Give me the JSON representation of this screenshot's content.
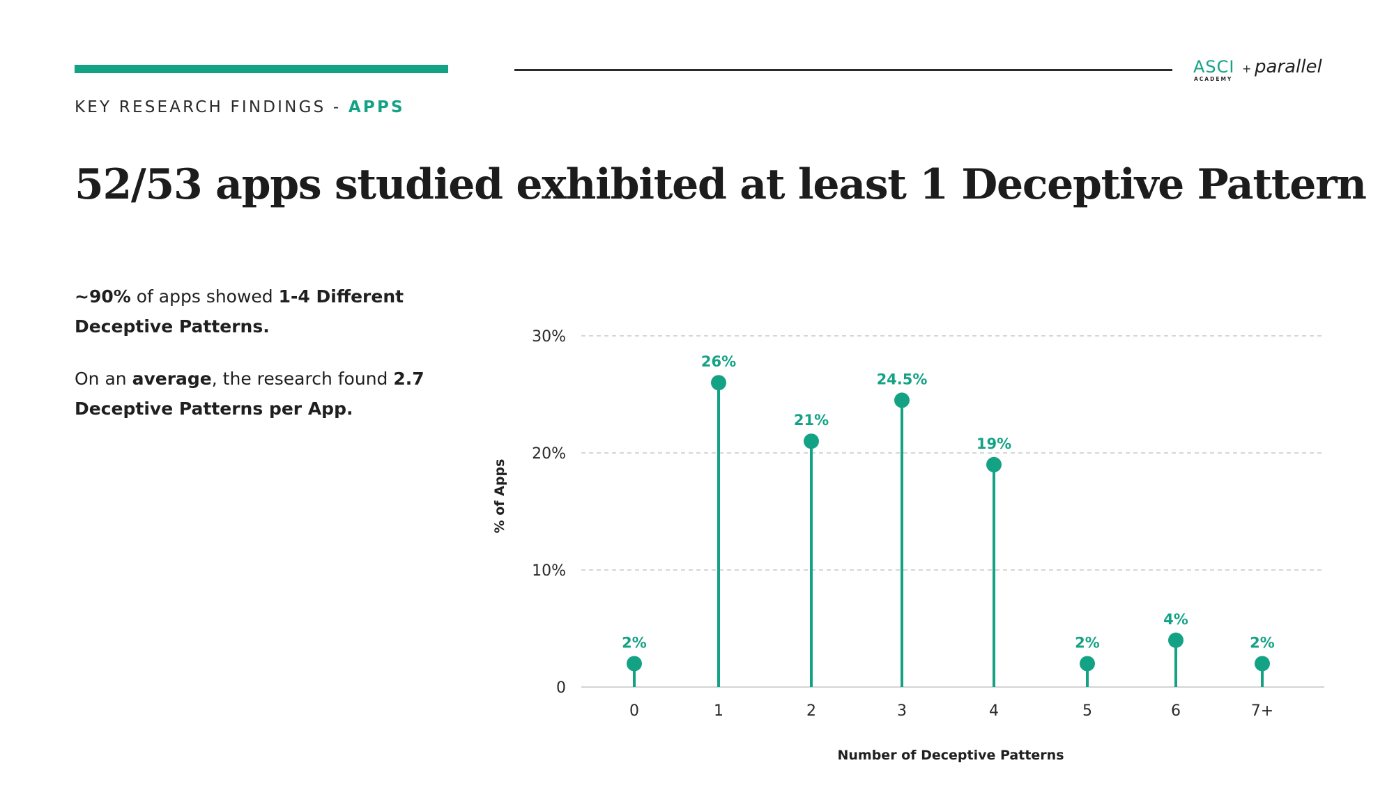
{
  "header": {
    "section_label_prefix": "KEY RESEARCH FINDINGS - ",
    "section_label_highlight": "APPS",
    "logo_asci_text": "ASCI",
    "logo_asci_sub": "ACADEMY",
    "logo_plus": "+",
    "logo_parallel": "parallel"
  },
  "headline": "52/53 apps studied exhibited at least 1 Deceptive Pattern",
  "insights": {
    "p1_bold1": "~90%",
    "p1_text1": " of apps showed ",
    "p1_bold2": "1-4 Different Deceptive Patterns.",
    "p2_text1": "On an ",
    "p2_bold1": "average",
    "p2_text2": ", the research found ",
    "p2_bold2": "2.7 Deceptive Patterns per App."
  },
  "colors": {
    "accent": "#14a285",
    "text": "#1f1f1f",
    "grid": "#c8c8c8",
    "axis": "#d4d4d4"
  },
  "chart_data": {
    "type": "lollipop",
    "categories": [
      "0",
      "1",
      "2",
      "3",
      "4",
      "5",
      "6",
      "7+"
    ],
    "values": [
      2,
      26,
      21,
      24.5,
      19,
      2,
      4,
      2
    ],
    "data_labels": [
      "2%",
      "26%",
      "21%",
      "24.5%",
      "19%",
      "2%",
      "4%",
      "2%"
    ],
    "xlabel": "Number of Deceptive Patterns",
    "ylabel": "% of Apps",
    "ylim": [
      0,
      30
    ],
    "yticks": [
      0,
      10,
      20,
      30
    ],
    "ytick_labels": [
      "0",
      "10%",
      "20%",
      "30%"
    ],
    "grid": true,
    "grid_style": "dashed",
    "color": "#14a285"
  }
}
